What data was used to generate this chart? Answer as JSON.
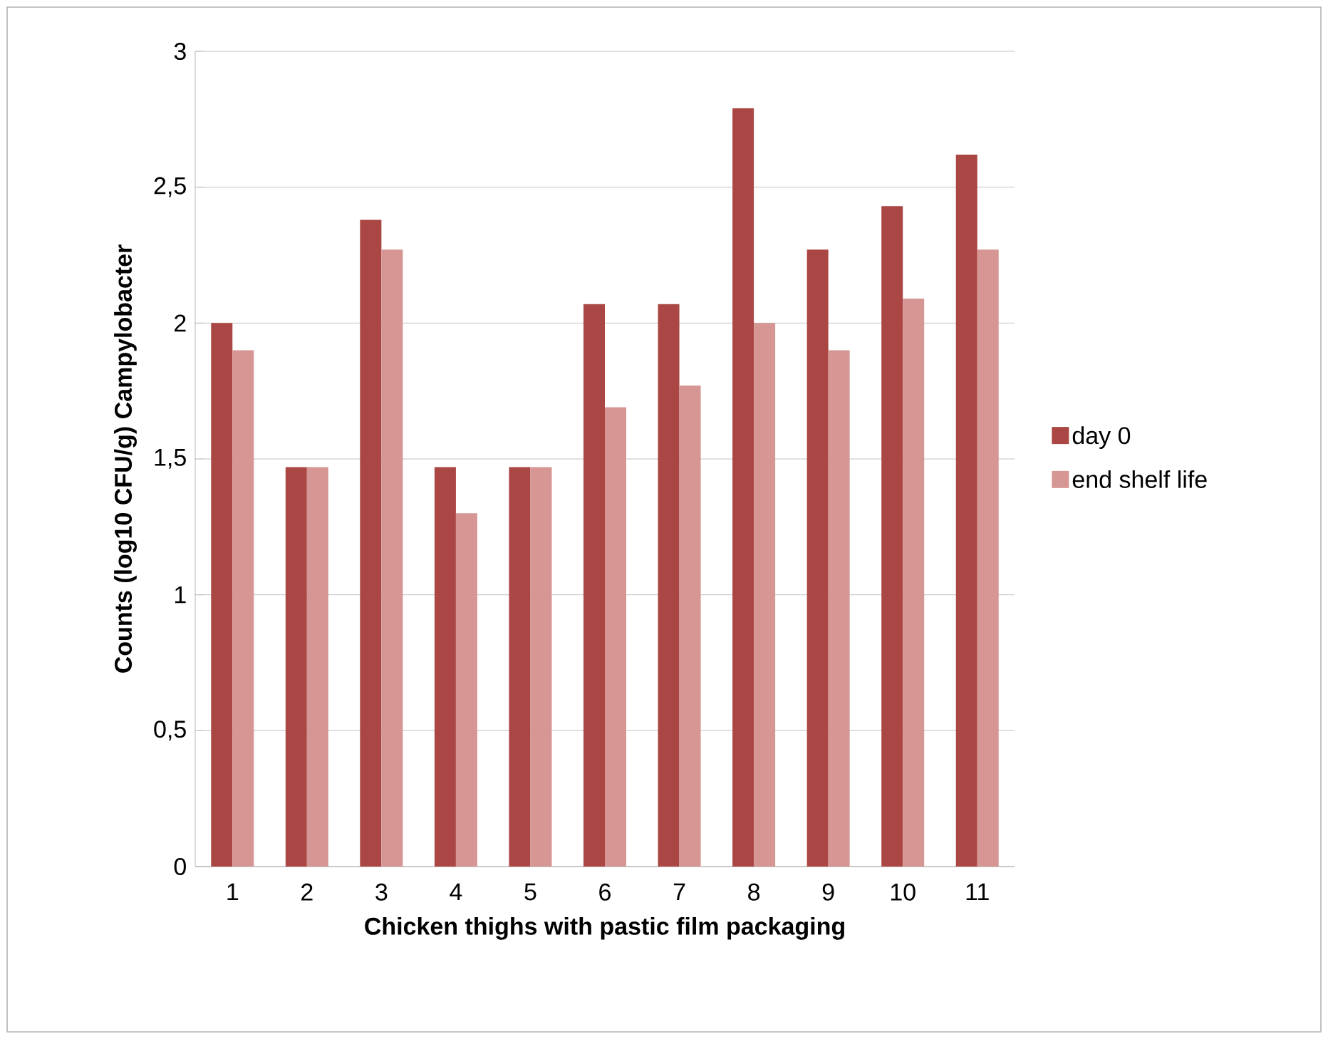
{
  "chart_data": {
    "type": "bar",
    "xlabel": "Chicken thighs with pastic film packaging",
    "ylabel": "Counts (log10 CFU/g) Campylobacter",
    "categories": [
      "1",
      "2",
      "3",
      "4",
      "5",
      "6",
      "7",
      "8",
      "9",
      "10",
      "11"
    ],
    "series": [
      {
        "name": "day 0",
        "color": "#aa4643",
        "values": [
          2.0,
          1.47,
          2.38,
          1.47,
          1.47,
          2.07,
          2.07,
          2.79,
          2.27,
          2.43,
          2.62
        ]
      },
      {
        "name": "end shelf life",
        "color": "#d69694",
        "values": [
          1.9,
          1.47,
          2.27,
          1.3,
          1.47,
          1.69,
          1.77,
          2.0,
          1.9,
          2.09,
          2.27
        ]
      }
    ],
    "ylim": [
      0,
      3
    ],
    "yticks": [
      0,
      {
        "value": 0.5,
        "label": "0,5"
      },
      1,
      {
        "value": 1.5,
        "label": "1,5"
      },
      2,
      {
        "value": 2.5,
        "label": "2,5"
      },
      3
    ],
    "grid": "y",
    "legend": "right"
  }
}
